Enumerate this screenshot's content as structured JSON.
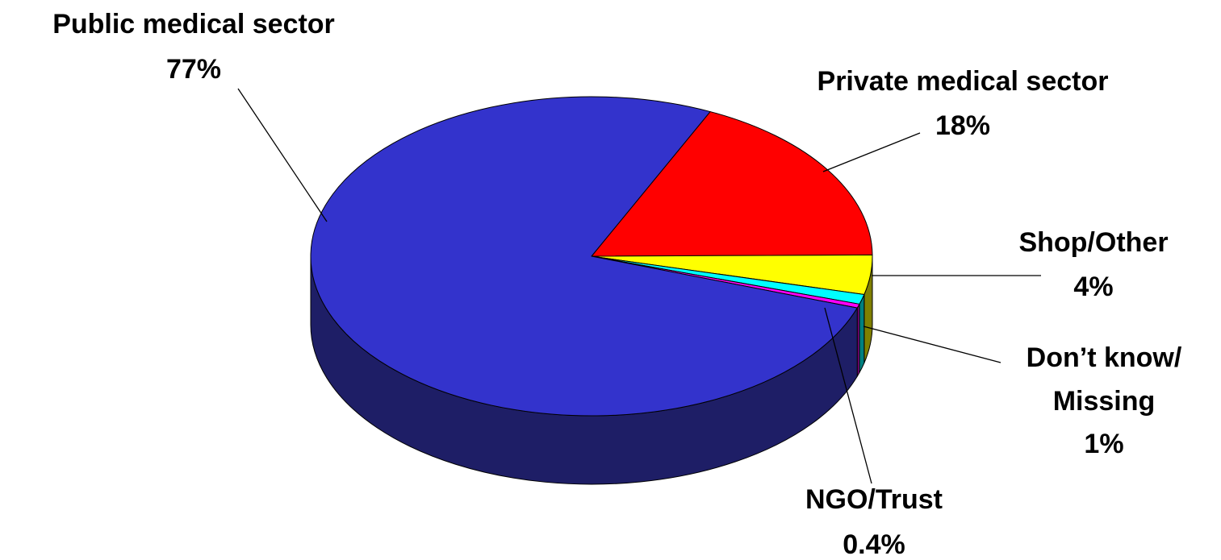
{
  "chart_data": {
    "type": "pie",
    "categories": [
      "Private medical sector",
      "Shop/Other",
      "Don’t know/ Missing",
      "NGO/Trust",
      "Public medical sector"
    ],
    "values": [
      18,
      4,
      1,
      0.4,
      77
    ],
    "value_labels": [
      "18%",
      "4%",
      "1%",
      "0.4%",
      "77%"
    ],
    "colors": [
      "#ff0000",
      "#ffff00",
      "#00ffff",
      "#ff00ff",
      "#3333cc"
    ],
    "side_colors": [
      "#800000",
      "#808000",
      "#008080",
      "#800080",
      "#1e1e66"
    ],
    "three_d": true
  }
}
